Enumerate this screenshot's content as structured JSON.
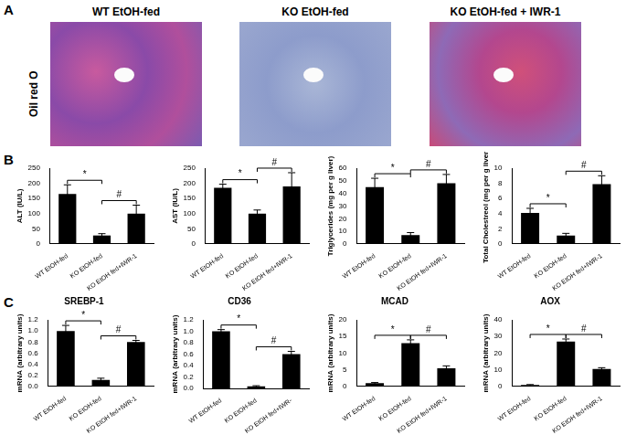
{
  "figure": {
    "panel_labels": [
      "A",
      "B",
      "C"
    ],
    "images": {
      "row_label": "Oil red O",
      "titles": [
        "WT EtOH-fed",
        "KO EtOH-fed",
        "KO EtOH-fed + IWR-1"
      ]
    }
  },
  "chart_data": [
    {
      "panel": "B",
      "type": "bar",
      "y_label": "ALT (IU/L)",
      "categories": [
        "WT EtOH-fed",
        "KO EtOH-fed",
        "KO EtOH fed+IWR-1"
      ],
      "values": [
        165,
        28,
        100
      ],
      "errors": [
        30,
        6,
        28
      ],
      "color": "#000000",
      "ylim": [
        0,
        250
      ],
      "yticks": [
        0,
        50,
        100,
        150,
        200,
        250
      ],
      "grid": false,
      "brackets": [
        {
          "from": "WT EtOH-fed",
          "to": "KO EtOH-fed",
          "text": "*"
        },
        {
          "from": "KO EtOH-fed",
          "to": "KO EtOH fed+IWR-1",
          "text": "#"
        }
      ]
    },
    {
      "panel": "B",
      "type": "bar",
      "y_label": "AST (IU/L)",
      "categories": [
        "WT EtOH-fed",
        "KO EtOH-fed",
        "KO EtOH fed+IWR-1"
      ],
      "values": [
        185,
        100,
        190
      ],
      "errors": [
        12,
        12,
        45
      ],
      "color": "#000000",
      "ylim": [
        0,
        250
      ],
      "yticks": [
        0,
        50,
        100,
        150,
        200,
        250
      ],
      "grid": false,
      "brackets": [
        {
          "from": "WT EtOH-fed",
          "to": "KO EtOH-fed",
          "text": "*"
        },
        {
          "from": "KO EtOH-fed",
          "to": "KO EtOH fed+IWR-1",
          "text": "#"
        }
      ]
    },
    {
      "panel": "B",
      "type": "bar",
      "y_label": "Triglycerides (mg per g liver)",
      "categories": [
        "WT EtOH-fed",
        "KO EtOH-fed",
        "KO EtOH fed+IWR-1"
      ],
      "values": [
        45,
        7,
        48
      ],
      "errors": [
        7,
        2,
        7
      ],
      "color": "#000000",
      "ylim": [
        0,
        60
      ],
      "yticks": [
        0,
        10,
        20,
        30,
        40,
        50,
        60
      ],
      "grid": false,
      "brackets": [
        {
          "from": "WT EtOH-fed",
          "to": "KO EtOH-fed",
          "text": "*"
        },
        {
          "from": "KO EtOH-fed",
          "to": "KO EtOH fed+IWR-1",
          "text": "#"
        }
      ]
    },
    {
      "panel": "B",
      "type": "bar",
      "y_label": "Total Cholestreol (mg per g liver)",
      "categories": [
        "WT EtOH-fed",
        "KO EtOH-fed",
        "KO EtOH fed+IWR-1"
      ],
      "values": [
        4.1,
        1.1,
        7.9
      ],
      "errors": [
        0.6,
        0.3,
        1.1
      ],
      "color": "#000000",
      "ylim": [
        0,
        10
      ],
      "yticks": [
        0,
        2,
        4,
        6,
        8,
        10
      ],
      "grid": false,
      "brackets": [
        {
          "from": "WT EtOH-fed",
          "to": "KO EtOH-fed",
          "text": "*"
        },
        {
          "from": "KO EtOH-fed",
          "to": "KO EtOH fed+IWR-1",
          "text": "#"
        }
      ]
    },
    {
      "panel": "C",
      "type": "bar",
      "title": "SREBP-1",
      "y_label": "mRNA (arbitrary units)",
      "categories": [
        "WT EtOH-fed",
        "KO EtOH-fed",
        "KO EtOH fed+IWR-1"
      ],
      "values": [
        1.0,
        0.12,
        0.8
      ],
      "errors": [
        0.1,
        0.03,
        0.03
      ],
      "color": "#000000",
      "ylim": [
        0,
        1.2
      ],
      "yticks": [
        {
          "value": 0,
          "label": "0.0"
        },
        0.2,
        0.4,
        0.6,
        0.8,
        {
          "value": 1,
          "label": "1.0"
        },
        1.2
      ],
      "grid": false,
      "brackets": [
        {
          "from": "WT EtOH-fed",
          "to": "KO EtOH-fed",
          "text": "*"
        },
        {
          "from": "KO EtOH-fed",
          "to": "KO EtOH fed+IWR-1",
          "text": "#"
        }
      ]
    },
    {
      "panel": "C",
      "type": "bar",
      "title": "CD36",
      "y_label": "mRNA (arbitrary units)",
      "categories": [
        "WT EtOH-fed",
        "KO EtOH-fed",
        "KO EtOH fed+IWR-"
      ],
      "values": [
        1.0,
        0.04,
        0.6
      ],
      "errors": [
        0.03,
        0.01,
        0.05
      ],
      "color": "#000000",
      "ylim": [
        0,
        1.2
      ],
      "yticks": [
        {
          "value": 0,
          "label": "0.0"
        },
        0.2,
        0.4,
        0.6,
        0.8,
        {
          "value": 1,
          "label": "1.0"
        },
        1.2
      ],
      "grid": false,
      "brackets": [
        {
          "from": "WT EtOH-fed",
          "to": "KO EtOH-fed",
          "text": "*"
        },
        {
          "from": "KO EtOH-fed",
          "to": "KO EtOH fed+IWR-",
          "text": "#"
        }
      ]
    },
    {
      "panel": "C",
      "type": "bar",
      "title": "MCAD",
      "y_label": "mRNA (arbitrary units)",
      "categories": [
        "WT EtOH-fed",
        "KO EtOH-fed",
        "KO EtOH fed+IWR-1"
      ],
      "values": [
        1,
        13,
        5.5
      ],
      "errors": [
        0.2,
        1,
        0.7
      ],
      "color": "#000000",
      "ylim": [
        0,
        20
      ],
      "yticks": [
        0,
        5,
        10,
        15,
        20
      ],
      "grid": false,
      "brackets": [
        {
          "from": "WT EtOH-fed",
          "to": "KO EtOH-fed",
          "text": "*"
        },
        {
          "from": "KO EtOH-fed",
          "to": "KO EtOH fed+IWR-1",
          "text": "#"
        }
      ]
    },
    {
      "panel": "C",
      "type": "bar",
      "title": "AOX",
      "y_label": "mRNA (arbitrary units)",
      "categories": [
        "WT EtOH-fed",
        "KO EtOH-fed",
        "KO EtOH fed+IWR-1"
      ],
      "values": [
        1,
        27,
        10.5
      ],
      "errors": [
        0.2,
        1.5,
        0.8
      ],
      "color": "#000000",
      "ylim": [
        0,
        40
      ],
      "yticks": [
        0,
        10,
        20,
        30,
        40
      ],
      "grid": false,
      "brackets": [
        {
          "from": "WT EtOH-fed",
          "to": "KO EtOH-fed",
          "text": "*"
        },
        {
          "from": "KO EtOH-fed",
          "to": "KO EtOH fed+IWR-1",
          "text": "#"
        }
      ]
    }
  ]
}
